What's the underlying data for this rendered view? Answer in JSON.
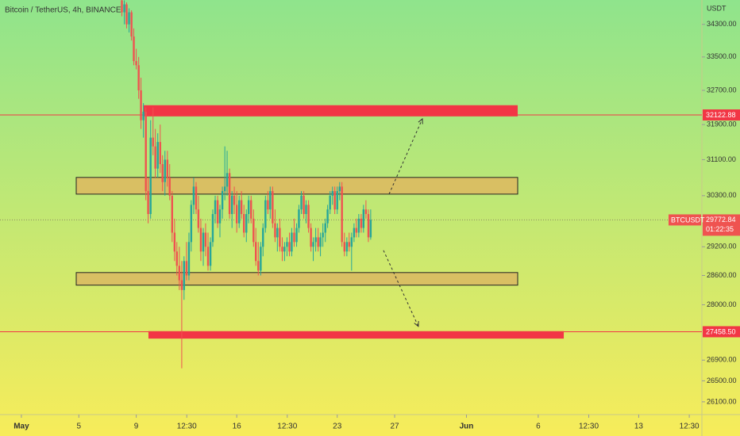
{
  "chart_data": {
    "type": "candlestick",
    "title": "Bitcoin / TetherUS, 4h, BINANCE",
    "currency": "USDT",
    "symbol": "BTCUSDT",
    "last_price": 29772.84,
    "countdown": "01:22:35",
    "log_scale": true,
    "up_color": "#26a69a",
    "down_color": "#ef5350",
    "ylim": [
      25860,
      34910
    ],
    "yticks": [
      {
        "value": 34300,
        "label": "34300.00"
      },
      {
        "value": 33500,
        "label": "33500.00"
      },
      {
        "value": 32700,
        "label": "32700.00"
      },
      {
        "value": 31900,
        "label": "31900.00"
      },
      {
        "value": 31100,
        "label": "31100.00"
      },
      {
        "value": 30300,
        "label": "30300.00"
      },
      {
        "value": 29200,
        "label": "29200.00"
      },
      {
        "value": 28600,
        "label": "28600.00"
      },
      {
        "value": 28000,
        "label": "28000.00"
      },
      {
        "value": 26900,
        "label": "26900.00"
      },
      {
        "value": 26500,
        "label": "26500.00"
      },
      {
        "value": 26100,
        "label": "26100.00"
      }
    ],
    "xlim": [
      -0.49,
      48.4
    ],
    "xticks": [
      {
        "value": 1,
        "label": "May"
      },
      5,
      9,
      {
        "value": 12.52,
        "label": "12:30"
      },
      16,
      {
        "value": 19.52,
        "label": "12:30"
      },
      23,
      27,
      {
        "value": 32,
        "label": "Jun"
      },
      {
        "value": 37,
        "label": "6"
      },
      {
        "value": 40.52,
        "label": "12:30"
      },
      {
        "value": 44,
        "label": "13"
      },
      {
        "value": 47.52,
        "label": "12:30"
      }
    ],
    "levels": [
      {
        "value": 32122.88,
        "color": "#f23645"
      },
      {
        "value": 27458.5,
        "label": "27458.50",
        "color": "#f23645"
      }
    ],
    "zones": [
      {
        "x": [
          9.52,
          35.57
        ],
        "y": [
          32090,
          32350
        ],
        "color": "#f23645"
      },
      {
        "x": [
          4.82,
          35.57
        ],
        "y": [
          30334,
          30703
        ],
        "color": "#d9bf63"
      },
      {
        "x": [
          4.82,
          35.57
        ],
        "y": [
          28400,
          28660
        ],
        "color": "#d9bf63"
      },
      {
        "x": [
          9.85,
          38.78
        ],
        "y": [
          27322,
          27470
        ],
        "color": "#f23645"
      }
    ],
    "arrows": [
      {
        "from": [
          26.61,
          30334
        ],
        "to": [
          28.93,
          32032
        ]
      },
      {
        "from": [
          26.22,
          29125
        ],
        "to": [
          28.65,
          27565
        ]
      }
    ],
    "x": [
      8,
      8.17,
      8.33,
      8.5,
      8.67,
      8.83,
      9,
      9.17,
      9.33,
      9.5,
      9.67,
      9.83,
      10,
      10.17,
      10.33,
      10.5,
      10.67,
      10.83,
      11,
      11.17,
      11.33,
      11.5,
      11.67,
      11.83,
      12,
      12.17,
      12.33,
      12.5,
      12.67,
      12.83,
      13,
      13.17,
      13.33,
      13.5,
      13.67,
      13.83,
      14,
      14.17,
      14.33,
      14.5,
      14.67,
      14.83,
      15,
      15.17,
      15.33,
      15.5,
      15.67,
      15.83,
      16,
      16.17,
      16.33,
      16.5,
      16.67,
      16.83,
      17,
      17.17,
      17.33,
      17.5,
      17.67,
      17.83,
      18,
      18.17,
      18.33,
      18.5,
      18.67,
      18.83,
      19,
      19.17,
      19.33,
      19.5,
      19.67,
      19.83,
      20,
      20.17,
      20.33,
      20.5,
      20.67,
      20.83,
      21,
      21.17,
      21.33,
      21.5,
      21.67,
      21.83,
      22,
      22.17,
      22.33,
      22.5,
      22.67,
      22.83,
      23,
      23.17,
      23.33,
      23.5,
      23.67,
      23.83,
      24,
      24.17,
      24.33,
      24.5,
      24.67,
      24.83,
      25,
      25.17,
      25.33
    ],
    "candles": [
      [
        34900,
        35100,
        34500,
        34600
      ],
      [
        34600,
        34900,
        34300,
        34800
      ],
      [
        34800,
        34850,
        34200,
        34300
      ],
      [
        34300,
        34700,
        34100,
        34600
      ],
      [
        34600,
        34650,
        33900,
        34000
      ],
      [
        34000,
        34200,
        33300,
        33400
      ],
      [
        33400,
        33700,
        33200,
        33300
      ],
      [
        33300,
        33500,
        32500,
        32700
      ],
      [
        32700,
        33000,
        31800,
        32000
      ],
      [
        32000,
        32400,
        31600,
        32200
      ],
      [
        32200,
        32300,
        30200,
        30400
      ],
      [
        30400,
        30700,
        29700,
        29900
      ],
      [
        29900,
        32000,
        29800,
        31600
      ],
      [
        31600,
        32300,
        31200,
        31400
      ],
      [
        31400,
        31800,
        30700,
        30900
      ],
      [
        30900,
        31700,
        30700,
        31500
      ],
      [
        31500,
        31900,
        30800,
        31000
      ],
      [
        31000,
        31200,
        30400,
        30600
      ],
      [
        30600,
        31300,
        30300,
        31100
      ],
      [
        31100,
        31300,
        30500,
        30700
      ],
      [
        30700,
        31000,
        30200,
        30300
      ],
      [
        30300,
        30400,
        29300,
        29500
      ],
      [
        29500,
        29800,
        28900,
        29100
      ],
      [
        29100,
        29300,
        28600,
        28800
      ],
      [
        28800,
        29200,
        28300,
        28500
      ],
      [
        28500,
        28900,
        26740,
        28300
      ],
      [
        28300,
        29000,
        28100,
        28900
      ],
      [
        28900,
        29300,
        28500,
        28600
      ],
      [
        28600,
        29500,
        28500,
        29300
      ],
      [
        29300,
        30200,
        29100,
        30100
      ],
      [
        30100,
        30700,
        29900,
        30500
      ],
      [
        30500,
        30600,
        29900,
        30000
      ],
      [
        30000,
        30300,
        29500,
        29600
      ],
      [
        29600,
        29800,
        28900,
        29100
      ],
      [
        29100,
        29600,
        28800,
        29500
      ],
      [
        29500,
        29700,
        29000,
        29200
      ],
      [
        29200,
        29500,
        28700,
        28800
      ],
      [
        28800,
        29400,
        28700,
        29300
      ],
      [
        29300,
        30000,
        29200,
        29900
      ],
      [
        29900,
        30300,
        29700,
        30200
      ],
      [
        30200,
        30300,
        29600,
        29700
      ],
      [
        29700,
        30100,
        29400,
        30000
      ],
      [
        30000,
        30500,
        29800,
        30400
      ],
      [
        30400,
        31400,
        30200,
        30500
      ],
      [
        30500,
        31300,
        30300,
        30800
      ],
      [
        30800,
        30900,
        29800,
        29900
      ],
      [
        29900,
        30400,
        29600,
        30300
      ],
      [
        30300,
        30500,
        29900,
        30100
      ],
      [
        30100,
        30400,
        29500,
        29700
      ],
      [
        29700,
        30300,
        29600,
        30200
      ],
      [
        30200,
        30400,
        29800,
        29900
      ],
      [
        29900,
        30100,
        29400,
        29500
      ],
      [
        29500,
        30000,
        29300,
        29900
      ],
      [
        29900,
        30300,
        29700,
        30200
      ],
      [
        30200,
        30300,
        29700,
        29800
      ],
      [
        29800,
        30000,
        29200,
        29300
      ],
      [
        29300,
        29600,
        28800,
        28900
      ],
      [
        28900,
        29300,
        28600,
        28700
      ],
      [
        28700,
        29300,
        28600,
        29200
      ],
      [
        29200,
        29700,
        29000,
        29600
      ],
      [
        29600,
        30300,
        29500,
        30200
      ],
      [
        30200,
        30400,
        29900,
        30000
      ],
      [
        30000,
        30500,
        29800,
        30400
      ],
      [
        30400,
        30500,
        29600,
        29700
      ],
      [
        29700,
        30000,
        29300,
        29400
      ],
      [
        29400,
        29700,
        29100,
        29600
      ],
      [
        29600,
        29800,
        29100,
        29200
      ],
      [
        29200,
        29400,
        28900,
        29100
      ],
      [
        29100,
        29300,
        28900,
        29200
      ],
      [
        29200,
        29400,
        29000,
        29300
      ],
      [
        29300,
        29500,
        29000,
        29100
      ],
      [
        29100,
        29600,
        29000,
        29500
      ],
      [
        29500,
        29800,
        29200,
        29300
      ],
      [
        29300,
        29700,
        29200,
        29600
      ],
      [
        29600,
        30100,
        29500,
        30000
      ],
      [
        30000,
        30400,
        29900,
        30300
      ],
      [
        30300,
        30400,
        29800,
        29900
      ],
      [
        29900,
        30200,
        29700,
        30100
      ],
      [
        30100,
        30200,
        29500,
        29600
      ],
      [
        29600,
        29700,
        29100,
        29200
      ],
      [
        29200,
        29400,
        28900,
        29300
      ],
      [
        29300,
        29600,
        29100,
        29400
      ],
      [
        29400,
        29600,
        29100,
        29200
      ],
      [
        29200,
        29500,
        29000,
        29400
      ],
      [
        29400,
        29700,
        29200,
        29500
      ],
      [
        29500,
        29800,
        29300,
        29700
      ],
      [
        29700,
        30100,
        29600,
        30000
      ],
      [
        30000,
        30400,
        29900,
        30300
      ],
      [
        30300,
        30500,
        30100,
        30400
      ],
      [
        30400,
        30500,
        29900,
        30000
      ],
      [
        30000,
        30500,
        29900,
        30400
      ],
      [
        30400,
        30600,
        30200,
        30500
      ],
      [
        30500,
        30600,
        29200,
        29300
      ],
      [
        29300,
        29500,
        29000,
        29100
      ],
      [
        29100,
        29400,
        29000,
        29300
      ],
      [
        29300,
        29500,
        29100,
        29200
      ],
      [
        29200,
        29500,
        28700,
        29400
      ],
      [
        29400,
        29700,
        29300,
        29600
      ],
      [
        29600,
        29800,
        29400,
        29500
      ],
      [
        29500,
        29900,
        29400,
        29800
      ],
      [
        29800,
        29900,
        29500,
        29600
      ],
      [
        29600,
        30100,
        29500,
        30000
      ],
      [
        30000,
        30200,
        29800,
        29900
      ],
      [
        29900,
        30000,
        29300,
        29400
      ],
      [
        29400,
        30000,
        29350,
        29772.84
      ]
    ]
  }
}
